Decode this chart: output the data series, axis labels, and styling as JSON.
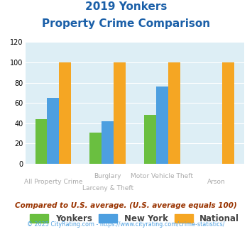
{
  "title_line1": "2019 Yonkers",
  "title_line2": "Property Crime Comparison",
  "cat_labels_top": [
    "",
    "Burglary",
    "Motor Vehicle Theft",
    ""
  ],
  "cat_labels_bot": [
    "All Property Crime",
    "Larceny & Theft",
    "",
    "Arson"
  ],
  "yonkers": [
    44,
    31,
    48,
    0
  ],
  "newyork": [
    65,
    42,
    76,
    0
  ],
  "national": [
    100,
    100,
    100,
    100
  ],
  "yonkers_color": "#6abf40",
  "newyork_color": "#4d9fe0",
  "national_color": "#f5a623",
  "ylim": [
    0,
    120
  ],
  "yticks": [
    0,
    20,
    40,
    60,
    80,
    100,
    120
  ],
  "plot_bg": "#ddeef5",
  "title_color": "#1a5fa8",
  "footer_note": "Compared to U.S. average. (U.S. average equals 100)",
  "footer_credit": "© 2025 CityRating.com - https://www.cityrating.com/crime-statistics/",
  "legend_labels": [
    "Yonkers",
    "New York",
    "National"
  ],
  "footer_note_color": "#993300",
  "footer_credit_color": "#4d9fe0",
  "label_color": "#aaaaaa"
}
